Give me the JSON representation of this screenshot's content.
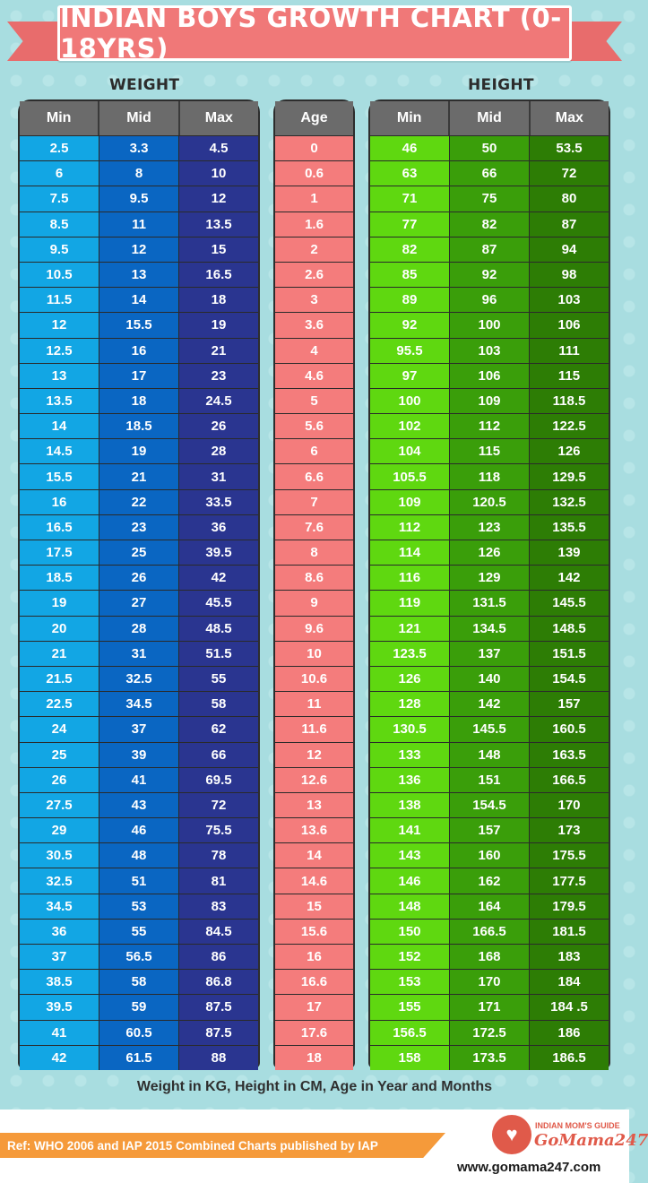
{
  "header": {
    "title": "INDIAN BOYS GROWTH CHART (0-18YRS)"
  },
  "labels": {
    "weight": "WEIGHT",
    "height": "HEIGHT"
  },
  "columns": {
    "weight": [
      "Min",
      "Mid",
      "Max"
    ],
    "age": [
      "Age"
    ],
    "height": [
      "Min",
      "Mid",
      "Max"
    ]
  },
  "colors": {
    "weight_min": "#12a6e4",
    "weight_mid": "#0a66c2",
    "weight_max": "#2a3590",
    "age": "#f47c7c",
    "height_min": "#5fd810",
    "height_mid": "#3a9e0a",
    "height_max": "#2d7d05",
    "banner": "#f07878",
    "ribbon": "#f59a3a"
  },
  "chart_data": {
    "type": "table",
    "title": "INDIAN BOYS GROWTH CHART (0-18YRS)",
    "weight": {
      "min": [
        "2.5",
        "6",
        "7.5",
        "8.5",
        "9.5",
        "10.5",
        "11.5",
        "12",
        "12.5",
        "13",
        "13.5",
        "14",
        "14.5",
        "15.5",
        "16",
        "16.5",
        "17.5",
        "18.5",
        "19",
        "20",
        "21",
        "21.5",
        "22.5",
        "24",
        "25",
        "26",
        "27.5",
        "29",
        "30.5",
        "32.5",
        "34.5",
        "36",
        "37",
        "38.5",
        "39.5",
        "41",
        "42"
      ],
      "mid": [
        "3.3",
        "8",
        "9.5",
        "11",
        "12",
        "13",
        "14",
        "15.5",
        "16",
        "17",
        "18",
        "18.5",
        "19",
        "21",
        "22",
        "23",
        "25",
        "26",
        "27",
        "28",
        "31",
        "32.5",
        "34.5",
        "37",
        "39",
        "41",
        "43",
        "46",
        "48",
        "51",
        "53",
        "55",
        "56.5",
        "58",
        "59",
        "60.5",
        "61.5"
      ],
      "max": [
        "4.5",
        "10",
        "12",
        "13.5",
        "15",
        "16.5",
        "18",
        "19",
        "21",
        "23",
        "24.5",
        "26",
        "28",
        "31",
        "33.5",
        "36",
        "39.5",
        "42",
        "45.5",
        "48.5",
        "51.5",
        "55",
        "58",
        "62",
        "66",
        "69.5",
        "72",
        "75.5",
        "78",
        "81",
        "83",
        "84.5",
        "86",
        "86.8",
        "87.5",
        "87.5",
        "88"
      ]
    },
    "age": [
      "0",
      "0.6",
      "1",
      "1.6",
      "2",
      "2.6",
      "3",
      "3.6",
      "4",
      "4.6",
      "5",
      "5.6",
      "6",
      "6.6",
      "7",
      "7.6",
      "8",
      "8.6",
      "9",
      "9.6",
      "10",
      "10.6",
      "11",
      "11.6",
      "12",
      "12.6",
      "13",
      "13.6",
      "14",
      "14.6",
      "15",
      "15.6",
      "16",
      "16.6",
      "17",
      "17.6",
      "18"
    ],
    "height": {
      "min": [
        "46",
        "63",
        "71",
        "77",
        "82",
        "85",
        "89",
        "92",
        "95.5",
        "97",
        "100",
        "102",
        "104",
        "105.5",
        "109",
        "112",
        "114",
        "116",
        "119",
        "121",
        "123.5",
        "126",
        "128",
        "130.5",
        "133",
        "136",
        "138",
        "141",
        "143",
        "146",
        "148",
        "150",
        "152",
        "153",
        "155",
        "156.5",
        "158"
      ],
      "mid": [
        "50",
        "66",
        "75",
        "82",
        "87",
        "92",
        "96",
        "100",
        "103",
        "106",
        "109",
        "112",
        "115",
        "118",
        "120.5",
        "123",
        "126",
        "129",
        "131.5",
        "134.5",
        "137",
        "140",
        "142",
        "145.5",
        "148",
        "151",
        "154.5",
        "157",
        "160",
        "162",
        "164",
        "166.5",
        "168",
        "170",
        "171",
        "172.5",
        "173.5"
      ],
      "max": [
        "53.5",
        "72",
        "80",
        "87",
        "94",
        "98",
        "103",
        "106",
        "111",
        "115",
        "118.5",
        "122.5",
        "126",
        "129.5",
        "132.5",
        "135.5",
        "139",
        "142",
        "145.5",
        "148.5",
        "151.5",
        "154.5",
        "157",
        "160.5",
        "163.5",
        "166.5",
        "170",
        "173",
        "175.5",
        "177.5",
        "179.5",
        "181.5",
        "183",
        "184",
        "184 .5",
        "186",
        "186.5"
      ]
    }
  },
  "footer": {
    "note": "Weight in KG, Height in CM, Age in Year and Months",
    "reference": "Ref: WHO 2006 and IAP 2015 Combined Charts published by IAP",
    "logo_tagline": "INDIAN MOM'S GUIDE",
    "logo_brand": "GoMama247",
    "website": "www.gomama247.com"
  }
}
